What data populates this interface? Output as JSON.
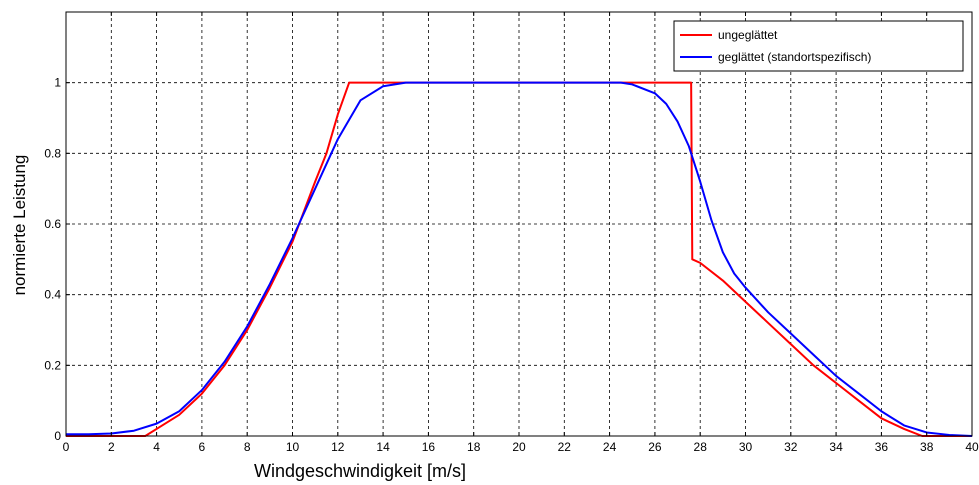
{
  "chart_data": {
    "type": "line",
    "xlabel": "Windgeschwindigkeit [m/s]",
    "ylabel": "normierte Leistung",
    "xlim": [
      0,
      40
    ],
    "ylim": [
      0,
      1.2
    ],
    "xticks": [
      0,
      2,
      4,
      6,
      8,
      10,
      12,
      14,
      16,
      18,
      20,
      22,
      24,
      26,
      28,
      30,
      32,
      34,
      36,
      38,
      40
    ],
    "yticks": [
      0,
      0.2,
      0.4,
      0.6,
      0.8,
      1
    ],
    "xtick_labels": [
      "0",
      "2",
      "4",
      "6",
      "8",
      "10",
      "12",
      "14",
      "16",
      "18",
      "20",
      "22",
      "24",
      "26",
      "28",
      "30",
      "32",
      "34",
      "36",
      "38",
      "40"
    ],
    "ytick_labels": [
      "0",
      "0.2",
      "0.4",
      "0.6",
      "0.8",
      "1"
    ],
    "grid": true,
    "legend_position": "top-right",
    "series": [
      {
        "name": "ungeglättet",
        "color": "#ff0000",
        "points": [
          [
            0,
            0
          ],
          [
            3.5,
            0
          ],
          [
            4,
            0.02
          ],
          [
            5,
            0.06
          ],
          [
            6,
            0.12
          ],
          [
            7,
            0.2
          ],
          [
            8,
            0.3
          ],
          [
            9,
            0.42
          ],
          [
            10,
            0.55
          ],
          [
            11,
            0.72
          ],
          [
            11.5,
            0.8
          ],
          [
            12,
            0.91
          ],
          [
            12.5,
            1
          ],
          [
            27.6,
            1
          ],
          [
            27.65,
            0.5
          ],
          [
            28,
            0.49
          ],
          [
            29,
            0.44
          ],
          [
            30,
            0.38
          ],
          [
            31,
            0.32
          ],
          [
            32,
            0.26
          ],
          [
            33,
            0.2
          ],
          [
            34,
            0.15
          ],
          [
            35,
            0.1
          ],
          [
            36,
            0.05
          ],
          [
            37,
            0.02
          ],
          [
            37.8,
            0
          ],
          [
            40,
            0
          ]
        ]
      },
      {
        "name": "geglättet (standortspezifisch)",
        "color": "#0000ff",
        "points": [
          [
            0,
            0.005
          ],
          [
            1,
            0.005
          ],
          [
            2,
            0.007
          ],
          [
            3,
            0.015
          ],
          [
            4,
            0.035
          ],
          [
            5,
            0.07
          ],
          [
            6,
            0.13
          ],
          [
            7,
            0.21
          ],
          [
            8,
            0.31
          ],
          [
            9,
            0.43
          ],
          [
            10,
            0.56
          ],
          [
            11,
            0.7
          ],
          [
            12,
            0.84
          ],
          [
            13,
            0.95
          ],
          [
            14,
            0.99
          ],
          [
            15,
            1
          ],
          [
            24.5,
            1
          ],
          [
            25,
            0.995
          ],
          [
            26,
            0.97
          ],
          [
            26.5,
            0.94
          ],
          [
            27,
            0.89
          ],
          [
            27.5,
            0.82
          ],
          [
            28,
            0.72
          ],
          [
            28.5,
            0.61
          ],
          [
            29,
            0.52
          ],
          [
            29.5,
            0.46
          ],
          [
            30,
            0.42
          ],
          [
            31,
            0.35
          ],
          [
            32,
            0.29
          ],
          [
            33,
            0.23
          ],
          [
            34,
            0.17
          ],
          [
            35,
            0.12
          ],
          [
            36,
            0.07
          ],
          [
            37,
            0.03
          ],
          [
            38,
            0.01
          ],
          [
            39,
            0.003
          ],
          [
            40,
            0
          ]
        ]
      }
    ]
  }
}
